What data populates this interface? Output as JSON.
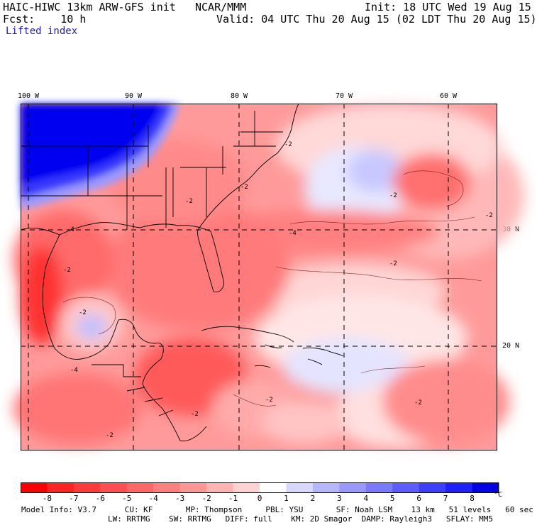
{
  "header": {
    "model_title": "HAIC-HIWC 13km ARW-GFS init",
    "org": "NCAR/MMM",
    "forecast": "Fcst:    10 h",
    "init": "Init: 18 UTC Wed 19 Aug 15",
    "valid": "Valid: 04 UTC Thu 20 Aug 15 (02 LDT Thu 20 Aug 15)",
    "field": "Lifted index"
  },
  "map": {
    "longitude_labels": [
      "100 W",
      "90 W",
      "80 W",
      "70 W",
      "60 W"
    ],
    "latitude_labels": [
      "30 N",
      "20 N"
    ],
    "contour_labels": [
      "-2",
      "-2",
      "-2",
      "-2",
      "-4",
      "-2",
      "-2",
      "-4",
      "-2",
      "-2",
      "-4",
      "-2",
      "-2",
      "-2",
      "-2"
    ]
  },
  "colorbar": {
    "tick_labels": [
      "-8",
      "-7",
      "-6",
      "-5",
      "-4",
      "-3",
      "-2",
      "-1",
      "0",
      "1",
      "2",
      "3",
      "4",
      "5",
      "6",
      "7",
      "8"
    ],
    "unit": "°C",
    "colors": [
      "#ff0000",
      "#ff2323",
      "#ff3a3a",
      "#ff5050",
      "#ff6666",
      "#ff7e7e",
      "#ff9696",
      "#ffb2b2",
      "#ffd2d2",
      "#ffffff",
      "#d8d8ff",
      "#b6b6ff",
      "#9898ff",
      "#7a7aff",
      "#5c5cff",
      "#3e3eff",
      "#2020ff",
      "#0000e6"
    ]
  },
  "footer": {
    "line1": "Model Info: V3.7      CU: KF       MP: Thompson     PBL: YSU       SF: Noah LSM    13 km   51 levels   60 sec",
    "line2": "LW: RRTMG    SW: RRTMG   DIFF: full    KM: 2D Smagor  DAMP: Rayleigh3   SFLAY: MM5"
  }
}
